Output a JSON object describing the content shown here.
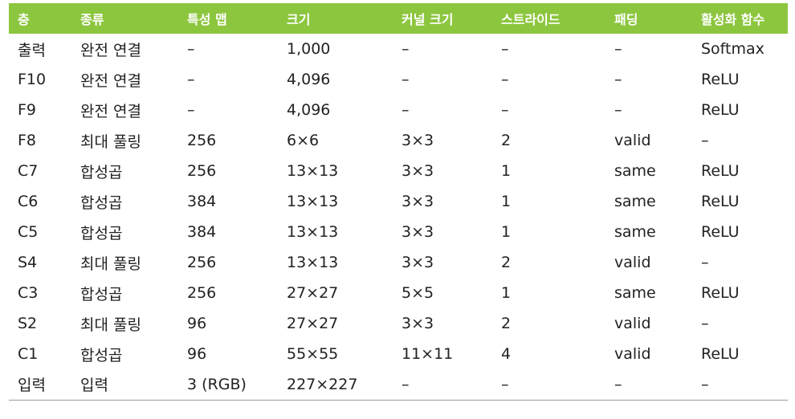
{
  "table": {
    "headers": [
      "층",
      "종류",
      "특성 맵",
      "크기",
      "커널 크기",
      "스트라이드",
      "패딩",
      "활성화 함수"
    ],
    "rows": [
      [
        "출력",
        "완전 연결",
        "–",
        "1,000",
        "–",
        "–",
        "–",
        "Softmax"
      ],
      [
        "F10",
        "완전 연결",
        "–",
        "4,096",
        "–",
        "–",
        "–",
        "ReLU"
      ],
      [
        "F9",
        "완전 연결",
        "–",
        "4,096",
        "–",
        "–",
        "–",
        "ReLU"
      ],
      [
        "F8",
        "최대 풀링",
        "256",
        "6×6",
        "3×3",
        "2",
        "valid",
        "–"
      ],
      [
        "C7",
        "합성곱",
        "256",
        "13×13",
        "3×3",
        "1",
        "same",
        "ReLU"
      ],
      [
        "C6",
        "합성곱",
        "384",
        "13×13",
        "3×3",
        "1",
        "same",
        "ReLU"
      ],
      [
        "C5",
        "합성곱",
        "384",
        "13×13",
        "3×3",
        "1",
        "same",
        "ReLU"
      ],
      [
        "S4",
        "최대 풀링",
        "256",
        "13×13",
        "3×3",
        "2",
        "valid",
        "–"
      ],
      [
        "C3",
        "합성곱",
        "256",
        "27×27",
        "5×5",
        "1",
        "same",
        "ReLU"
      ],
      [
        "S2",
        "최대 풀링",
        "96",
        "27×27",
        "3×3",
        "2",
        "valid",
        "–"
      ],
      [
        "C1",
        "합성곱",
        "96",
        "55×55",
        "11×11",
        "4",
        "valid",
        "ReLU"
      ],
      [
        "입력",
        "입력",
        "3 (RGB)",
        "227×227",
        "–",
        "–",
        "–",
        "–"
      ]
    ]
  },
  "colors": {
    "header_bg": "#8cc63e",
    "header_text": "#ffffff",
    "body_text": "#222222",
    "bottom_rule": "#9a9a9a"
  }
}
